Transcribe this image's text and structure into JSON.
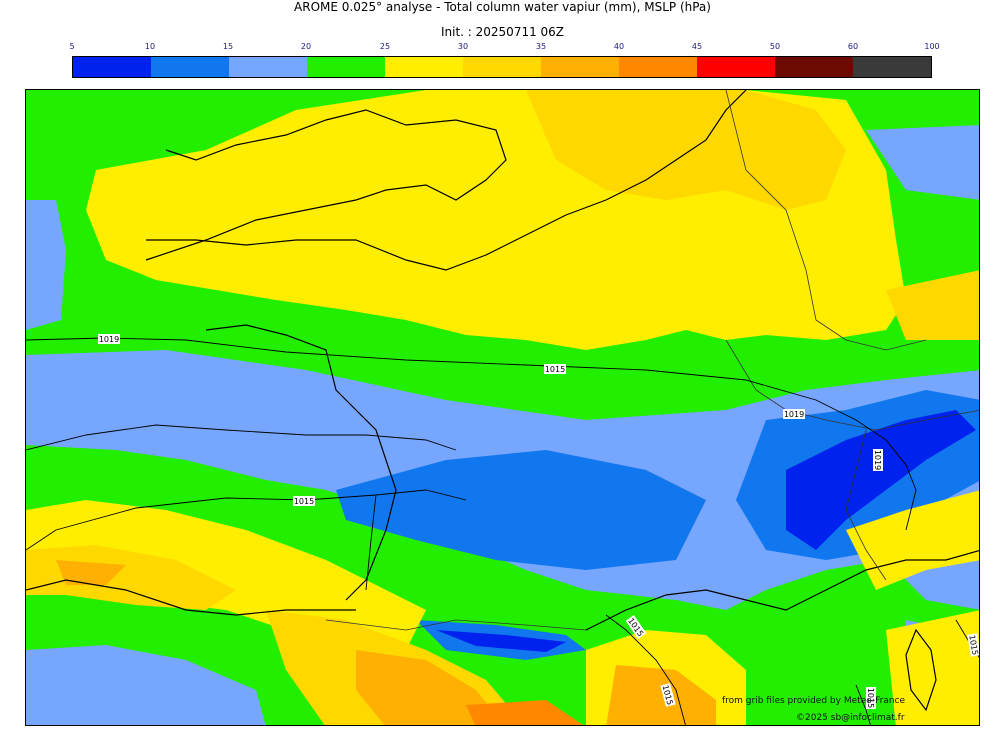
{
  "header": {
    "title": "AROME 0.025° analyse - Total column water vapiur (mm), MSLP (hPa)",
    "init": "Init. : 20250711 06Z"
  },
  "colorbar": {
    "ticks": [
      "5",
      "10",
      "15",
      "20",
      "25",
      "30",
      "35",
      "40",
      "45",
      "50",
      "60",
      "100"
    ],
    "colors": [
      "#0022ee",
      "#1177ee",
      "#77a6ff",
      "#22ee00",
      "#ffee00",
      "#ffd800",
      "#ffb000",
      "#ff8800",
      "#ff0000",
      "#6b0a00",
      "#3a3a3a"
    ]
  },
  "map": {
    "isobar_labels": [
      "1019",
      "1015",
      "1019",
      "1019",
      "1015",
      "1015",
      "1015",
      "1015",
      "1015"
    ]
  },
  "credits": {
    "source": "from grib files provided by Meteo-France",
    "copyright": "©2025 sb@infoclimat.fr"
  }
}
